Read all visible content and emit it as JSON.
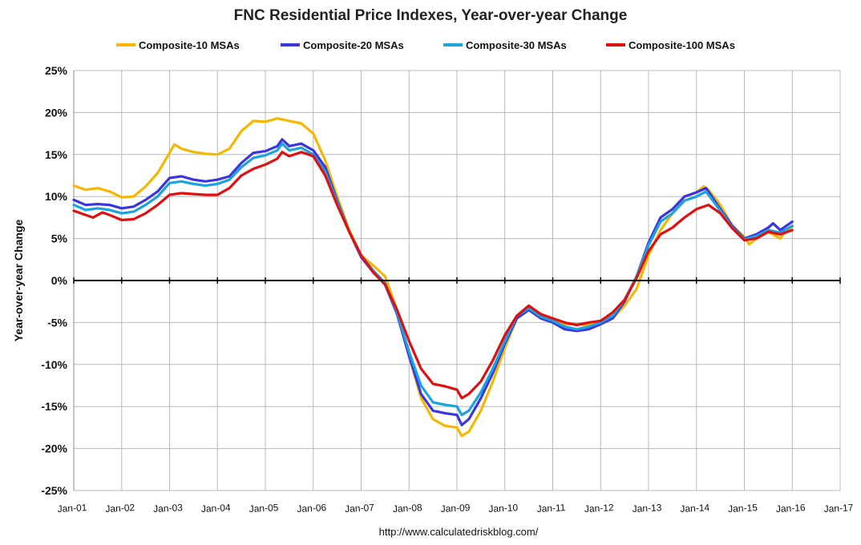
{
  "chart_data": {
    "type": "line",
    "title": "FNC Residential Price Indexes, Year-over-year Change",
    "ylabel": "Year-over-year Change",
    "xlabel": "",
    "source": "http://www.calculatedriskblog.com/",
    "ylim": [
      -25,
      25
    ],
    "yticks": [
      25,
      20,
      15,
      10,
      5,
      0,
      -5,
      -10,
      -15,
      -20,
      -25
    ],
    "ytick_labels": [
      "25%",
      "20%",
      "15%",
      "10%",
      "5%",
      "0%",
      "-5%",
      "-10%",
      "-15%",
      "-20%",
      "-25%"
    ],
    "xlim": [
      2001,
      2017
    ],
    "xticks": [
      2001,
      2002,
      2003,
      2004,
      2005,
      2006,
      2007,
      2008,
      2009,
      2010,
      2011,
      2012,
      2013,
      2014,
      2015,
      2016,
      2017
    ],
    "xtick_labels": [
      "Jan-01",
      "Jan-02",
      "Jan-03",
      "Jan-04",
      "Jan-05",
      "Jan-06",
      "Jan-07",
      "Jan-08",
      "Jan-09",
      "Jan-10",
      "Jan-11",
      "Jan-12",
      "Jan-13",
      "Jan-14",
      "Jan-15",
      "Jan-16",
      "Jan-17"
    ],
    "grid": true,
    "legend": "top",
    "series": [
      {
        "name": "Composite-10 MSAs",
        "color": "#f5b800",
        "points": [
          [
            2001.0,
            11.3
          ],
          [
            2001.25,
            10.8
          ],
          [
            2001.5,
            11.0
          ],
          [
            2001.75,
            10.6
          ],
          [
            2002.0,
            9.9
          ],
          [
            2002.25,
            10.0
          ],
          [
            2002.5,
            11.2
          ],
          [
            2002.75,
            12.8
          ],
          [
            2003.0,
            15.2
          ],
          [
            2003.1,
            16.2
          ],
          [
            2003.25,
            15.7
          ],
          [
            2003.5,
            15.3
          ],
          [
            2003.75,
            15.1
          ],
          [
            2004.0,
            15.0
          ],
          [
            2004.25,
            15.7
          ],
          [
            2004.5,
            17.8
          ],
          [
            2004.75,
            19.0
          ],
          [
            2005.0,
            18.9
          ],
          [
            2005.25,
            19.3
          ],
          [
            2005.5,
            19.0
          ],
          [
            2005.75,
            18.7
          ],
          [
            2006.0,
            17.5
          ],
          [
            2006.25,
            14.3
          ],
          [
            2006.5,
            10.0
          ],
          [
            2006.75,
            6.0
          ],
          [
            2007.0,
            3.0
          ],
          [
            2007.25,
            1.8
          ],
          [
            2007.5,
            0.5
          ],
          [
            2007.75,
            -3.5
          ],
          [
            2008.0,
            -9.0
          ],
          [
            2008.25,
            -14.0
          ],
          [
            2008.5,
            -16.5
          ],
          [
            2008.75,
            -17.3
          ],
          [
            2009.0,
            -17.5
          ],
          [
            2009.1,
            -18.5
          ],
          [
            2009.25,
            -18.0
          ],
          [
            2009.5,
            -15.5
          ],
          [
            2009.75,
            -12.0
          ],
          [
            2010.0,
            -8.0
          ],
          [
            2010.25,
            -4.5
          ],
          [
            2010.5,
            -3.5
          ],
          [
            2010.75,
            -4.2
          ],
          [
            2011.0,
            -4.8
          ],
          [
            2011.25,
            -5.2
          ],
          [
            2011.5,
            -5.2
          ],
          [
            2011.75,
            -5.3
          ],
          [
            2012.0,
            -4.8
          ],
          [
            2012.25,
            -4.5
          ],
          [
            2012.5,
            -3.0
          ],
          [
            2012.75,
            -1.0
          ],
          [
            2013.0,
            3.0
          ],
          [
            2013.25,
            6.0
          ],
          [
            2013.5,
            8.0
          ],
          [
            2013.75,
            10.0
          ],
          [
            2014.0,
            10.5
          ],
          [
            2014.15,
            11.2
          ],
          [
            2014.25,
            10.8
          ],
          [
            2014.5,
            9.0
          ],
          [
            2014.75,
            6.5
          ],
          [
            2015.0,
            5.2
          ],
          [
            2015.1,
            4.3
          ],
          [
            2015.25,
            5.0
          ],
          [
            2015.5,
            5.8
          ],
          [
            2015.75,
            5.0
          ],
          [
            2015.85,
            5.8
          ],
          [
            2016.0,
            6.4
          ]
        ]
      },
      {
        "name": "Composite-20 MSAs",
        "color": "#3b35e0",
        "points": [
          [
            2001.0,
            9.6
          ],
          [
            2001.25,
            9.0
          ],
          [
            2001.5,
            9.1
          ],
          [
            2001.75,
            9.0
          ],
          [
            2002.0,
            8.6
          ],
          [
            2002.25,
            8.8
          ],
          [
            2002.5,
            9.6
          ],
          [
            2002.75,
            10.6
          ],
          [
            2003.0,
            12.2
          ],
          [
            2003.25,
            12.4
          ],
          [
            2003.5,
            12.0
          ],
          [
            2003.75,
            11.8
          ],
          [
            2004.0,
            12.0
          ],
          [
            2004.25,
            12.4
          ],
          [
            2004.5,
            14.0
          ],
          [
            2004.75,
            15.2
          ],
          [
            2005.0,
            15.4
          ],
          [
            2005.25,
            16.0
          ],
          [
            2005.35,
            16.8
          ],
          [
            2005.5,
            16.0
          ],
          [
            2005.75,
            16.3
          ],
          [
            2006.0,
            15.5
          ],
          [
            2006.25,
            13.5
          ],
          [
            2006.5,
            9.5
          ],
          [
            2006.75,
            5.8
          ],
          [
            2007.0,
            2.8
          ],
          [
            2007.25,
            1.0
          ],
          [
            2007.5,
            -0.5
          ],
          [
            2007.75,
            -4.0
          ],
          [
            2008.0,
            -9.0
          ],
          [
            2008.25,
            -13.5
          ],
          [
            2008.5,
            -15.5
          ],
          [
            2008.75,
            -15.8
          ],
          [
            2009.0,
            -16.0
          ],
          [
            2009.1,
            -17.2
          ],
          [
            2009.25,
            -16.5
          ],
          [
            2009.5,
            -14.0
          ],
          [
            2009.75,
            -11.0
          ],
          [
            2010.0,
            -7.5
          ],
          [
            2010.25,
            -4.5
          ],
          [
            2010.5,
            -3.5
          ],
          [
            2010.75,
            -4.5
          ],
          [
            2011.0,
            -5.0
          ],
          [
            2011.25,
            -5.8
          ],
          [
            2011.5,
            -6.0
          ],
          [
            2011.75,
            -5.8
          ],
          [
            2012.0,
            -5.2
          ],
          [
            2012.25,
            -4.5
          ],
          [
            2012.5,
            -2.5
          ],
          [
            2012.75,
            0.5
          ],
          [
            2013.0,
            4.5
          ],
          [
            2013.25,
            7.5
          ],
          [
            2013.5,
            8.5
          ],
          [
            2013.75,
            10.0
          ],
          [
            2014.0,
            10.5
          ],
          [
            2014.2,
            11.0
          ],
          [
            2014.5,
            8.5
          ],
          [
            2014.75,
            6.5
          ],
          [
            2015.0,
            5.0
          ],
          [
            2015.25,
            5.5
          ],
          [
            2015.5,
            6.3
          ],
          [
            2015.6,
            6.8
          ],
          [
            2015.75,
            6.0
          ],
          [
            2016.0,
            7.0
          ]
        ]
      },
      {
        "name": "Composite-30 MSAs",
        "color": "#1aa3e0",
        "points": [
          [
            2001.0,
            9.0
          ],
          [
            2001.25,
            8.4
          ],
          [
            2001.5,
            8.6
          ],
          [
            2001.75,
            8.4
          ],
          [
            2002.0,
            8.0
          ],
          [
            2002.25,
            8.2
          ],
          [
            2002.5,
            9.0
          ],
          [
            2002.75,
            10.0
          ],
          [
            2003.0,
            11.6
          ],
          [
            2003.25,
            11.8
          ],
          [
            2003.5,
            11.5
          ],
          [
            2003.75,
            11.3
          ],
          [
            2004.0,
            11.5
          ],
          [
            2004.25,
            12.0
          ],
          [
            2004.5,
            13.5
          ],
          [
            2004.75,
            14.6
          ],
          [
            2005.0,
            14.9
          ],
          [
            2005.25,
            15.5
          ],
          [
            2005.35,
            16.3
          ],
          [
            2005.5,
            15.5
          ],
          [
            2005.75,
            15.8
          ],
          [
            2006.0,
            15.0
          ],
          [
            2006.25,
            13.0
          ],
          [
            2006.5,
            9.3
          ],
          [
            2006.75,
            5.8
          ],
          [
            2007.0,
            3.0
          ],
          [
            2007.25,
            1.2
          ],
          [
            2007.5,
            -0.3
          ],
          [
            2007.75,
            -3.8
          ],
          [
            2008.0,
            -8.5
          ],
          [
            2008.25,
            -12.5
          ],
          [
            2008.5,
            -14.5
          ],
          [
            2008.75,
            -14.8
          ],
          [
            2009.0,
            -15.0
          ],
          [
            2009.1,
            -16.0
          ],
          [
            2009.25,
            -15.5
          ],
          [
            2009.5,
            -13.3
          ],
          [
            2009.75,
            -10.5
          ],
          [
            2010.0,
            -7.2
          ],
          [
            2010.25,
            -4.2
          ],
          [
            2010.5,
            -3.3
          ],
          [
            2010.75,
            -4.3
          ],
          [
            2011.0,
            -4.8
          ],
          [
            2011.25,
            -5.5
          ],
          [
            2011.5,
            -5.8
          ],
          [
            2011.75,
            -5.5
          ],
          [
            2012.0,
            -5.0
          ],
          [
            2012.25,
            -4.2
          ],
          [
            2012.5,
            -2.3
          ],
          [
            2012.75,
            0.5
          ],
          [
            2013.0,
            4.2
          ],
          [
            2013.25,
            7.0
          ],
          [
            2013.5,
            8.0
          ],
          [
            2013.75,
            9.5
          ],
          [
            2014.0,
            10.0
          ],
          [
            2014.2,
            10.6
          ],
          [
            2014.5,
            8.3
          ],
          [
            2014.75,
            6.3
          ],
          [
            2015.0,
            4.9
          ],
          [
            2015.25,
            5.3
          ],
          [
            2015.5,
            6.0
          ],
          [
            2015.75,
            5.7
          ],
          [
            2016.0,
            6.5
          ]
        ]
      },
      {
        "name": "Composite-100 MSAs",
        "color": "#e01010",
        "points": [
          [
            2001.0,
            8.3
          ],
          [
            2001.25,
            7.8
          ],
          [
            2001.4,
            7.5
          ],
          [
            2001.6,
            8.1
          ],
          [
            2001.75,
            7.8
          ],
          [
            2002.0,
            7.2
          ],
          [
            2002.25,
            7.3
          ],
          [
            2002.5,
            8.0
          ],
          [
            2002.75,
            9.0
          ],
          [
            2003.0,
            10.2
          ],
          [
            2003.25,
            10.4
          ],
          [
            2003.5,
            10.3
          ],
          [
            2003.75,
            10.2
          ],
          [
            2004.0,
            10.2
          ],
          [
            2004.25,
            11.0
          ],
          [
            2004.5,
            12.5
          ],
          [
            2004.75,
            13.3
          ],
          [
            2005.0,
            13.8
          ],
          [
            2005.25,
            14.5
          ],
          [
            2005.35,
            15.3
          ],
          [
            2005.5,
            14.8
          ],
          [
            2005.75,
            15.3
          ],
          [
            2006.0,
            14.8
          ],
          [
            2006.25,
            12.5
          ],
          [
            2006.5,
            9.0
          ],
          [
            2006.75,
            5.8
          ],
          [
            2007.0,
            3.0
          ],
          [
            2007.25,
            1.0
          ],
          [
            2007.5,
            -0.5
          ],
          [
            2007.75,
            -3.5
          ],
          [
            2008.0,
            -7.2
          ],
          [
            2008.25,
            -10.5
          ],
          [
            2008.5,
            -12.3
          ],
          [
            2008.75,
            -12.6
          ],
          [
            2009.0,
            -13.0
          ],
          [
            2009.1,
            -14.0
          ],
          [
            2009.25,
            -13.5
          ],
          [
            2009.5,
            -12.0
          ],
          [
            2009.75,
            -9.5
          ],
          [
            2010.0,
            -6.5
          ],
          [
            2010.25,
            -4.2
          ],
          [
            2010.5,
            -3.0
          ],
          [
            2010.75,
            -4.0
          ],
          [
            2011.0,
            -4.5
          ],
          [
            2011.25,
            -5.0
          ],
          [
            2011.5,
            -5.3
          ],
          [
            2011.75,
            -5.0
          ],
          [
            2012.0,
            -4.8
          ],
          [
            2012.25,
            -3.8
          ],
          [
            2012.5,
            -2.3
          ],
          [
            2012.75,
            0.3
          ],
          [
            2013.0,
            3.5
          ],
          [
            2013.25,
            5.5
          ],
          [
            2013.5,
            6.3
          ],
          [
            2013.75,
            7.5
          ],
          [
            2014.0,
            8.5
          ],
          [
            2014.25,
            9.0
          ],
          [
            2014.5,
            8.0
          ],
          [
            2014.75,
            6.2
          ],
          [
            2015.0,
            4.8
          ],
          [
            2015.25,
            5.0
          ],
          [
            2015.5,
            5.8
          ],
          [
            2015.75,
            5.5
          ],
          [
            2016.0,
            6.0
          ]
        ]
      }
    ]
  }
}
